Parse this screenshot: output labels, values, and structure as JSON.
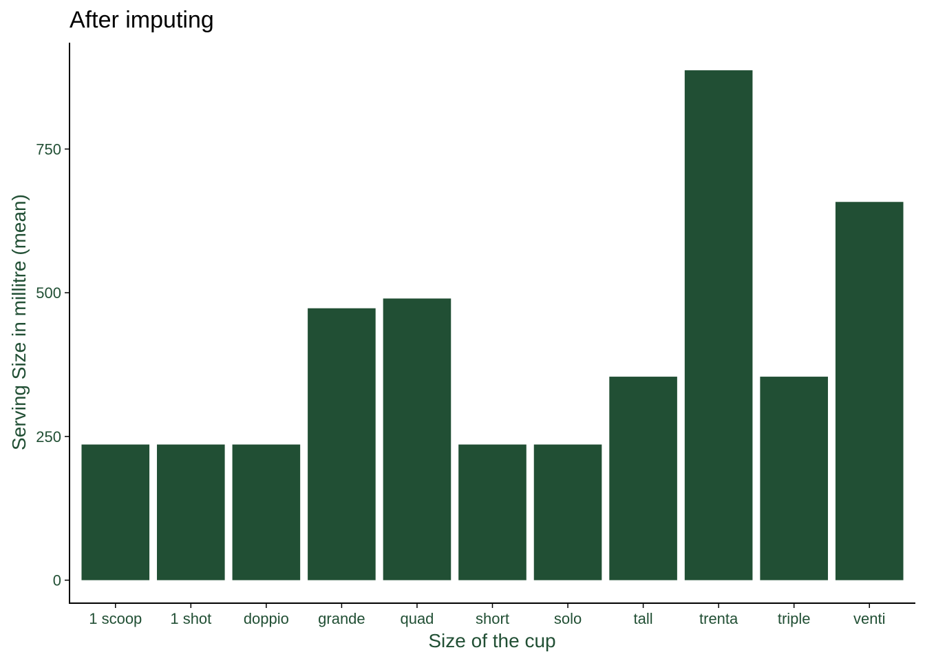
{
  "chart_data": {
    "type": "bar",
    "title": "After imputing",
    "xlabel": "Size of the cup",
    "ylabel": "Serving Size in millitre (mean)",
    "categories": [
      "1 scoop",
      "1 shot",
      "doppio",
      "grande",
      "quad",
      "short",
      "solo",
      "tall",
      "trenta",
      "triple",
      "venti"
    ],
    "values": [
      236,
      236,
      236,
      473,
      490,
      236,
      236,
      354,
      887,
      354,
      658
    ],
    "yticks": [
      0,
      250,
      500,
      750
    ],
    "ylim": [
      -40,
      935
    ],
    "grid": false,
    "legend": "none"
  },
  "colors": {
    "bar": "#214F34",
    "axis_text": "#214F34",
    "axis_line": "#000000",
    "title": "#000000"
  }
}
